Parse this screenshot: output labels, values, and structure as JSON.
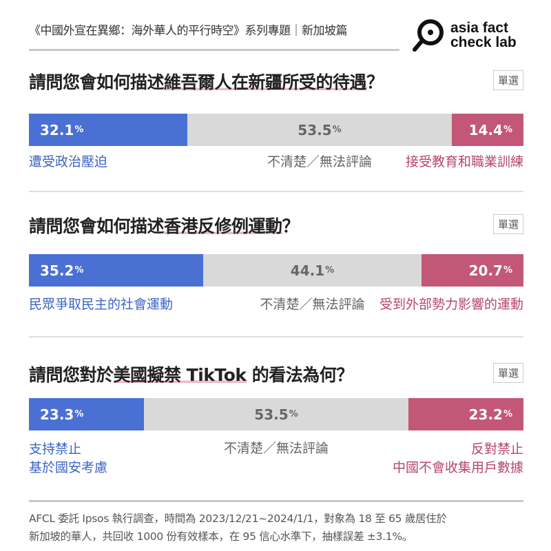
{
  "header": {
    "series_title": "《中國外宣在異鄉：海外華人的平行時空》系列專題｜新加坡篇",
    "logo_text_1": "asia fact",
    "logo_text_2": "check lab"
  },
  "colors": {
    "support": "#4a70d4",
    "neutral": "#d9d9d9",
    "oppose": "#c35778",
    "support_text": "#3c63c6",
    "oppose_text": "#b6466b",
    "neutral_text": "#666666"
  },
  "chart_data": [
    {
      "type": "bar",
      "stacked": true,
      "orientation": "horizontal",
      "title_prefix": "請問您會如何描述",
      "title_highlight": "維吾爾人在新疆所受的待遇",
      "title_suffix": "？",
      "badge": "單選",
      "series": [
        {
          "name": "遭受政治壓迫",
          "value": 32.1
        },
        {
          "name": "不清楚／無法評論",
          "value": 53.5
        },
        {
          "name": "接受教育和職業訓練",
          "value": 14.4
        }
      ],
      "unit": "%"
    },
    {
      "type": "bar",
      "stacked": true,
      "orientation": "horizontal",
      "title_prefix": "請問您會如何描述",
      "title_highlight": "香港反修例運動",
      "title_suffix": "？",
      "badge": "單選",
      "series": [
        {
          "name": "民眾爭取民主的社會運動",
          "value": 35.2
        },
        {
          "name": "不清楚／無法評論",
          "value": 44.1
        },
        {
          "name": "受到外部勢力影響的運動",
          "value": 20.7
        }
      ],
      "unit": "%"
    },
    {
      "type": "bar",
      "stacked": true,
      "orientation": "horizontal",
      "title_prefix": "請問您對於",
      "title_highlight": "美國擬禁 TikTok",
      "title_suffix": " 的看法為何？",
      "badge": "單選",
      "series": [
        {
          "name": "支持禁止",
          "sublabel": "基於國安考慮",
          "value": 23.3
        },
        {
          "name": "不清楚／無法評論",
          "value": 53.5
        },
        {
          "name": "反對禁止",
          "sublabel": "中國不會收集用戶數據",
          "value": 23.2
        }
      ],
      "unit": "%"
    }
  ],
  "footnote": {
    "line1": "AFCL 委託 Ipsos 執行調查，時間為 2023/12/21~2024/1/1，對象為 18 至 65 歲居住於",
    "line2": "新加坡的華人，共回收 1000 份有效樣本，在 95 信心水準下，抽樣誤差 ±3.1%。"
  }
}
